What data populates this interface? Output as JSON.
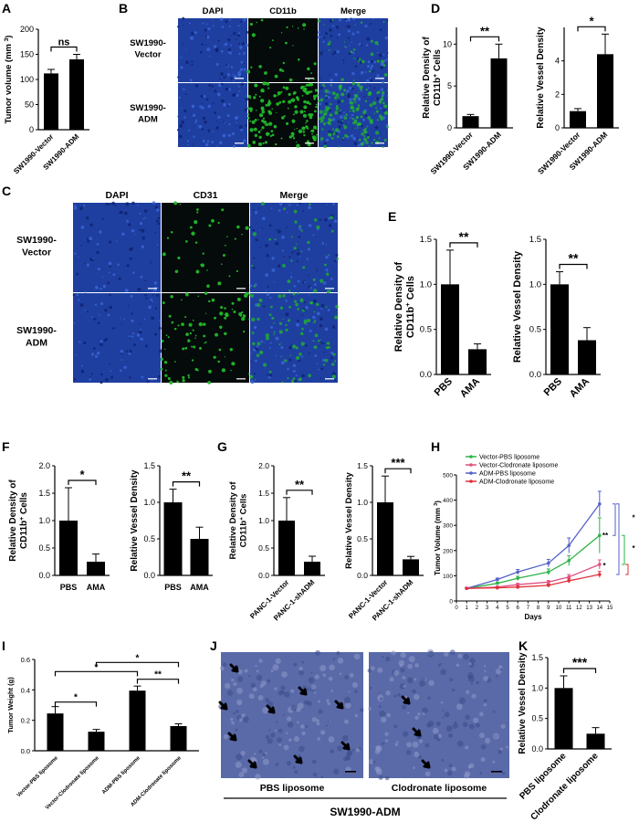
{
  "panels": {
    "A": "A",
    "B": "B",
    "C": "C",
    "D": "D",
    "E": "E",
    "F": "F",
    "G": "G",
    "H": "H",
    "I": "I",
    "J": "J",
    "K": "K"
  },
  "micro_B": {
    "columns": [
      "DAPI",
      "CD11b",
      "Merge"
    ],
    "rows": [
      "SW1990-\nVector",
      "SW1990-\nADM"
    ],
    "colors": {
      "dapi": "#1e3fa0",
      "stain": "#22b82a",
      "bg": "#050a0a"
    }
  },
  "micro_C": {
    "columns": [
      "DAPI",
      "CD31",
      "Merge"
    ],
    "rows": [
      "SW1990-\nVector",
      "SW1990-\nADM"
    ]
  },
  "histo_J": {
    "labels": [
      "PBS liposome",
      "Clodronate liposome"
    ],
    "group": "SW1990-ADM",
    "colors": {
      "tissue": "#5a6aa8",
      "arrow": "#000000"
    }
  },
  "chart_data": [
    {
      "id": "A",
      "type": "bar",
      "ylabel": "Tumor volume (mm 3)",
      "categories": [
        "SW1990-Vector",
        "SW1990-ADM"
      ],
      "values": [
        112,
        140
      ],
      "errors": [
        8,
        10
      ],
      "ylim": [
        0,
        200
      ],
      "ticks": [
        0,
        50,
        100,
        150,
        200
      ],
      "sig": [
        {
          "pair": [
            0,
            1
          ],
          "text": "ns"
        }
      ]
    },
    {
      "id": "D1",
      "type": "bar",
      "ylabel": "Relative Density of CD11b+ Cells",
      "categories": [
        "SW1990-Vector",
        "SW1990-ADM"
      ],
      "values": [
        1.4,
        8.3
      ],
      "errors": [
        0.2,
        1.7
      ],
      "ylim": [
        0,
        12
      ],
      "ticks": [
        0,
        5,
        10
      ],
      "sig": [
        {
          "pair": [
            0,
            1
          ],
          "text": "**"
        }
      ]
    },
    {
      "id": "D2",
      "type": "bar",
      "ylabel": "Relative Vessel Density",
      "categories": [
        "SW1990-Vector",
        "SW1990-ADM"
      ],
      "values": [
        1.0,
        4.4
      ],
      "errors": [
        0.15,
        1.2
      ],
      "ylim": [
        0,
        6
      ],
      "ticks": [
        0,
        2,
        4
      ],
      "sig": [
        {
          "pair": [
            0,
            1
          ],
          "text": "*"
        }
      ]
    },
    {
      "id": "E1",
      "type": "bar",
      "ylabel": "Relative Density of CD11b+ Cells",
      "categories": [
        "PBS",
        "AMA"
      ],
      "values": [
        1.0,
        0.28
      ],
      "errors": [
        0.38,
        0.06
      ],
      "ylim": [
        0,
        1.5
      ],
      "ticks": [
        0.0,
        0.5,
        1.0,
        1.5
      ],
      "sig": [
        {
          "pair": [
            0,
            1
          ],
          "text": "**"
        }
      ]
    },
    {
      "id": "E2",
      "type": "bar",
      "ylabel": "Relative Vessel Density",
      "categories": [
        "PBS",
        "AMA"
      ],
      "values": [
        1.0,
        0.38
      ],
      "errors": [
        0.14,
        0.14
      ],
      "ylim": [
        0,
        1.5
      ],
      "ticks": [
        0.0,
        0.5,
        1.0,
        1.5
      ],
      "sig": [
        {
          "pair": [
            0,
            1
          ],
          "text": "**"
        }
      ]
    },
    {
      "id": "F1",
      "type": "bar",
      "ylabel": "Relative Density of CD11b+ Cells",
      "categories": [
        "PBS",
        "AMA"
      ],
      "values": [
        1.0,
        0.25
      ],
      "errors": [
        0.6,
        0.14
      ],
      "ylim": [
        0,
        2.0
      ],
      "ticks": [
        0.0,
        0.5,
        1.0,
        1.5,
        2.0
      ],
      "sig": [
        {
          "pair": [
            0,
            1
          ],
          "text": "*"
        }
      ]
    },
    {
      "id": "F2",
      "type": "bar",
      "ylabel": "Relative Vessel Density",
      "categories": [
        "PBS",
        "AMA"
      ],
      "values": [
        1.0,
        0.5
      ],
      "errors": [
        0.18,
        0.16
      ],
      "ylim": [
        0,
        1.5
      ],
      "ticks": [
        0.0,
        0.5,
        1.0,
        1.5
      ],
      "sig": [
        {
          "pair": [
            0,
            1
          ],
          "text": "**"
        }
      ]
    },
    {
      "id": "G1",
      "type": "bar",
      "ylabel": "Relative Density of CD11b+ Cells",
      "categories": [
        "PANC-1-Vector",
        "PANC-1-shADM"
      ],
      "values": [
        1.0,
        0.25
      ],
      "errors": [
        0.42,
        0.1
      ],
      "ylim": [
        0,
        2.0
      ],
      "ticks": [
        0.0,
        0.5,
        1.0,
        1.5,
        2.0
      ],
      "sig": [
        {
          "pair": [
            0,
            1
          ],
          "text": "**"
        }
      ]
    },
    {
      "id": "G2",
      "type": "bar",
      "ylabel": "Relative Vessel Density",
      "categories": [
        "PANC-1-Vector",
        "PANC-1-shADM"
      ],
      "values": [
        1.0,
        0.22
      ],
      "errors": [
        0.36,
        0.04
      ],
      "ylim": [
        0,
        1.5
      ],
      "ticks": [
        0.0,
        0.5,
        1.0,
        1.5
      ],
      "sig": [
        {
          "pair": [
            0,
            1
          ],
          "text": "***"
        }
      ]
    },
    {
      "id": "H",
      "type": "line",
      "xlabel": "Days",
      "ylabel": "Tumor Volume (mm 3)",
      "xlim": [
        0,
        15
      ],
      "ylim": [
        0,
        500
      ],
      "xticks": [
        0,
        1,
        2,
        3,
        4,
        5,
        6,
        7,
        8,
        9,
        10,
        11,
        12,
        13,
        14,
        15
      ],
      "yticks": [
        0,
        100,
        200,
        300,
        400,
        500
      ],
      "series": [
        {
          "name": "Vector-PBS liposome",
          "color": "#2fb34a",
          "x": [
            1,
            4,
            6,
            9,
            11,
            14
          ],
          "y": [
            50,
            70,
            90,
            115,
            160,
            260
          ],
          "err": [
            3,
            5,
            8,
            12,
            20,
            70
          ]
        },
        {
          "name": "Vector-Clodronate liposome",
          "color": "#e05080",
          "x": [
            1,
            4,
            6,
            9,
            11,
            14
          ],
          "y": [
            50,
            55,
            65,
            75,
            95,
            145
          ],
          "err": [
            3,
            4,
            5,
            6,
            10,
            18
          ]
        },
        {
          "name": "ADM-PBS liposome",
          "color": "#5561c9",
          "x": [
            1,
            4,
            6,
            9,
            11,
            14
          ],
          "y": [
            50,
            85,
            115,
            150,
            220,
            385
          ],
          "err": [
            3,
            6,
            10,
            15,
            30,
            50
          ]
        },
        {
          "name": "ADM-Clodronate liposome",
          "color": "#e0303a",
          "x": [
            1,
            4,
            6,
            9,
            11,
            14
          ],
          "y": [
            50,
            52,
            55,
            62,
            80,
            105
          ],
          "err": [
            3,
            3,
            4,
            5,
            8,
            12
          ]
        }
      ],
      "sig": [
        "*",
        "**",
        "*",
        "*"
      ]
    },
    {
      "id": "I",
      "type": "bar",
      "ylabel": "Tumor Weight (g)",
      "categories": [
        "Vector-PBS liposome",
        "Vector-Clodronate liposome",
        "ADM-PBS liposome",
        "ADM-Clodronate liposome"
      ],
      "values": [
        0.245,
        0.125,
        0.395,
        0.162
      ],
      "errors": [
        0.045,
        0.015,
        0.03,
        0.015
      ],
      "ylim": [
        0,
        0.6
      ],
      "ticks": [
        0.0,
        0.2,
        0.4,
        0.6
      ],
      "sig": [
        {
          "pair": [
            0,
            1
          ],
          "text": "*"
        },
        {
          "pair": [
            2,
            3
          ],
          "text": "**"
        },
        {
          "pair": [
            0,
            2
          ],
          "text": "*"
        },
        {
          "pair": [
            1,
            3
          ],
          "text": "*"
        }
      ]
    },
    {
      "id": "K",
      "type": "bar",
      "ylabel": "Relative Vessel Density",
      "categories": [
        "PBS liposome",
        "Clodronate liposome"
      ],
      "values": [
        1.0,
        0.25
      ],
      "errors": [
        0.2,
        0.1
      ],
      "ylim": [
        0,
        1.5
      ],
      "ticks": [
        0.0,
        0.5,
        1.0,
        1.5
      ],
      "sig": [
        {
          "pair": [
            0,
            1
          ],
          "text": "***"
        }
      ]
    }
  ]
}
